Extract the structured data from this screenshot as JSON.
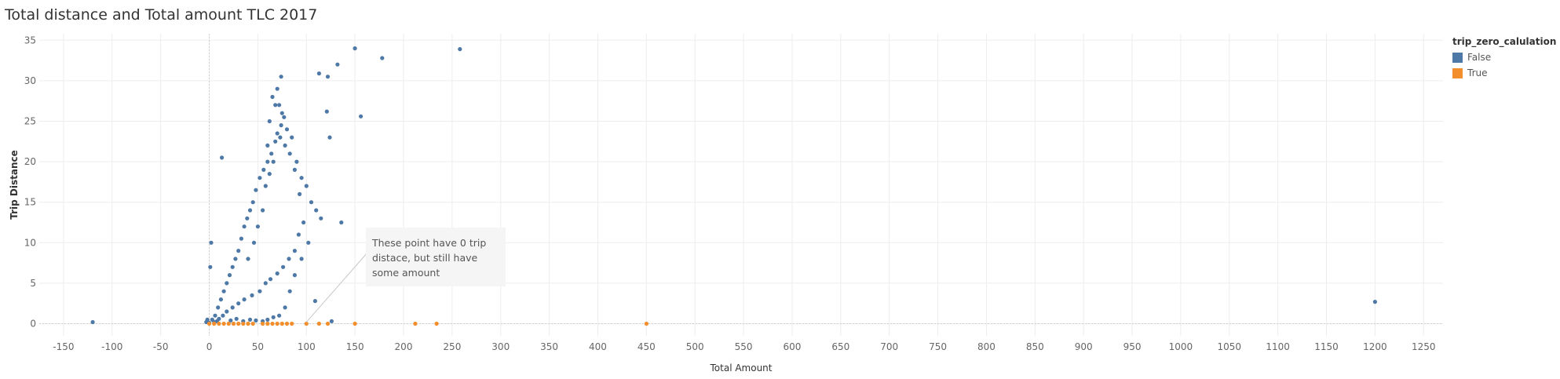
{
  "title": "Total distance and Total amount TLC 2017",
  "legend": {
    "title": "trip_zero_calulation",
    "items": [
      {
        "label": "False",
        "color": "#4e79a7"
      },
      {
        "label": "True",
        "color": "#f28e2b"
      }
    ]
  },
  "annotation": {
    "text": "These point have 0 trip distace, but still have some amount",
    "target": [
      100,
      0
    ]
  },
  "chart_data": {
    "type": "scatter",
    "title": "Total distance and Total amount TLC 2017",
    "xlabel": "Total Amount",
    "ylabel": "Trip Distance",
    "xlim": [
      -175,
      1270
    ],
    "ylim": [
      -1.5,
      35.8
    ],
    "xticks": [
      -150,
      -100,
      -50,
      0,
      50,
      100,
      150,
      200,
      250,
      300,
      350,
      400,
      450,
      500,
      550,
      600,
      650,
      700,
      750,
      800,
      850,
      900,
      950,
      1000,
      1050,
      1100,
      1150,
      1200,
      1250
    ],
    "yticks": [
      0,
      5,
      10,
      15,
      20,
      25,
      30,
      35
    ],
    "grid": true,
    "legend_position": "right",
    "series": [
      {
        "name": "False",
        "color": "#4e79a7",
        "points": [
          [
            -120,
            0.2
          ],
          [
            1200,
            2.7
          ],
          [
            150,
            34
          ],
          [
            258,
            33.9
          ],
          [
            178,
            32.8
          ],
          [
            132,
            32
          ],
          [
            113,
            30.9
          ],
          [
            122,
            30.5
          ],
          [
            74,
            30.5
          ],
          [
            156,
            25.6
          ],
          [
            121,
            26.2
          ],
          [
            124,
            23
          ],
          [
            136,
            12.5
          ],
          [
            109,
            2.8
          ],
          [
            126,
            0.3
          ],
          [
            13,
            20.5
          ],
          [
            2,
            10
          ],
          [
            1,
            7
          ],
          [
            65,
            28
          ],
          [
            68,
            27
          ],
          [
            70,
            29
          ],
          [
            72,
            27
          ],
          [
            62,
            25
          ],
          [
            60,
            22
          ],
          [
            75,
            26
          ],
          [
            80,
            24
          ],
          [
            85,
            23
          ],
          [
            90,
            20
          ],
          [
            95,
            18
          ],
          [
            100,
            17
          ],
          [
            105,
            15
          ],
          [
            110,
            14
          ],
          [
            115,
            13
          ],
          [
            102,
            10
          ],
          [
            95,
            8
          ],
          [
            88,
            6
          ],
          [
            83,
            4
          ],
          [
            78,
            2
          ],
          [
            72,
            1
          ],
          [
            66,
            0.8
          ],
          [
            60,
            0.5
          ],
          [
            55,
            0.3
          ],
          [
            48,
            0.4
          ],
          [
            42,
            0.5
          ],
          [
            35,
            0.3
          ],
          [
            28,
            0.6
          ],
          [
            22,
            0.4
          ],
          [
            -2,
            0.5
          ],
          [
            -3,
            0.2
          ],
          [
            0,
            0.1
          ],
          [
            5,
            0.2
          ],
          [
            8,
            0.3
          ],
          [
            10,
            0.6
          ],
          [
            14,
            1
          ],
          [
            18,
            1.5
          ],
          [
            24,
            2
          ],
          [
            30,
            2.5
          ],
          [
            36,
            3
          ],
          [
            44,
            3.5
          ],
          [
            52,
            4
          ],
          [
            58,
            5
          ],
          [
            63,
            5.5
          ],
          [
            70,
            6.2
          ],
          [
            76,
            7
          ],
          [
            82,
            8
          ],
          [
            88,
            9
          ],
          [
            92,
            11
          ],
          [
            97,
            12.5
          ],
          [
            93,
            16
          ],
          [
            88,
            19
          ],
          [
            83,
            21
          ],
          [
            78,
            22
          ],
          [
            73,
            23
          ],
          [
            68,
            22.5
          ],
          [
            64,
            21
          ],
          [
            60,
            20
          ],
          [
            56,
            19
          ],
          [
            52,
            18
          ],
          [
            48,
            16.5
          ],
          [
            45,
            15
          ],
          [
            42,
            14
          ],
          [
            39,
            13
          ],
          [
            36,
            12
          ],
          [
            33,
            10.5
          ],
          [
            30,
            9
          ],
          [
            27,
            8
          ],
          [
            24,
            7
          ],
          [
            21,
            6
          ],
          [
            18,
            5
          ],
          [
            15,
            4
          ],
          [
            12,
            3
          ],
          [
            9,
            2
          ],
          [
            6,
            1
          ],
          [
            3,
            0.5
          ],
          [
            40,
            8
          ],
          [
            46,
            10
          ],
          [
            50,
            12
          ],
          [
            55,
            14
          ],
          [
            58,
            17
          ],
          [
            62,
            18.5
          ],
          [
            66,
            20
          ],
          [
            70,
            23.5
          ],
          [
            74,
            24.5
          ],
          [
            77,
            25.5
          ]
        ]
      },
      {
        "name": "True",
        "color": "#f28e2b",
        "points": [
          [
            0,
            0
          ],
          [
            5,
            0
          ],
          [
            10,
            0
          ],
          [
            15,
            0
          ],
          [
            20,
            0
          ],
          [
            25,
            0
          ],
          [
            30,
            0
          ],
          [
            35,
            0
          ],
          [
            40,
            0
          ],
          [
            45,
            0
          ],
          [
            55,
            0
          ],
          [
            60,
            0
          ],
          [
            65,
            0
          ],
          [
            70,
            0
          ],
          [
            75,
            0
          ],
          [
            80,
            0
          ],
          [
            85,
            0
          ],
          [
            100,
            0
          ],
          [
            113,
            0
          ],
          [
            122,
            0
          ],
          [
            150,
            0
          ],
          [
            212,
            0
          ],
          [
            234,
            0
          ],
          [
            450,
            0
          ]
        ]
      }
    ]
  }
}
